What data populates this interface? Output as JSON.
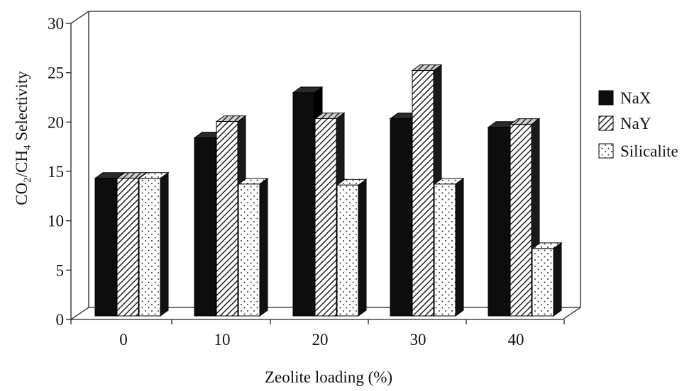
{
  "chart_data": {
    "type": "bar",
    "categories": [
      "0",
      "10",
      "20",
      "30",
      "40"
    ],
    "series": [
      {
        "name": "NaX",
        "values": [
          14.3,
          18.5,
          23.2,
          20.5,
          19.6
        ],
        "pattern": "solid",
        "color": "#111111"
      },
      {
        "name": "NaY",
        "values": [
          14.3,
          20.2,
          20.5,
          25.5,
          19.9
        ],
        "pattern": "hatch",
        "color": "#555555"
      },
      {
        "name": "Silicalite",
        "values": [
          14.3,
          13.7,
          13.6,
          13.7,
          7.0
        ],
        "pattern": "dots",
        "color": "#ffffff"
      }
    ],
    "xlabel": "Zeolite loading (%)",
    "ylabel": {
      "pre": "CO",
      "sub1": "2",
      "mid": "/CH",
      "sub2": "4",
      "post": " Selectivity"
    },
    "ylim": [
      0,
      30
    ],
    "yticks": [
      "0",
      "5",
      "10",
      "15",
      "20",
      "25",
      "30"
    ],
    "legend_position": "right",
    "grid": false,
    "style": "3d"
  }
}
